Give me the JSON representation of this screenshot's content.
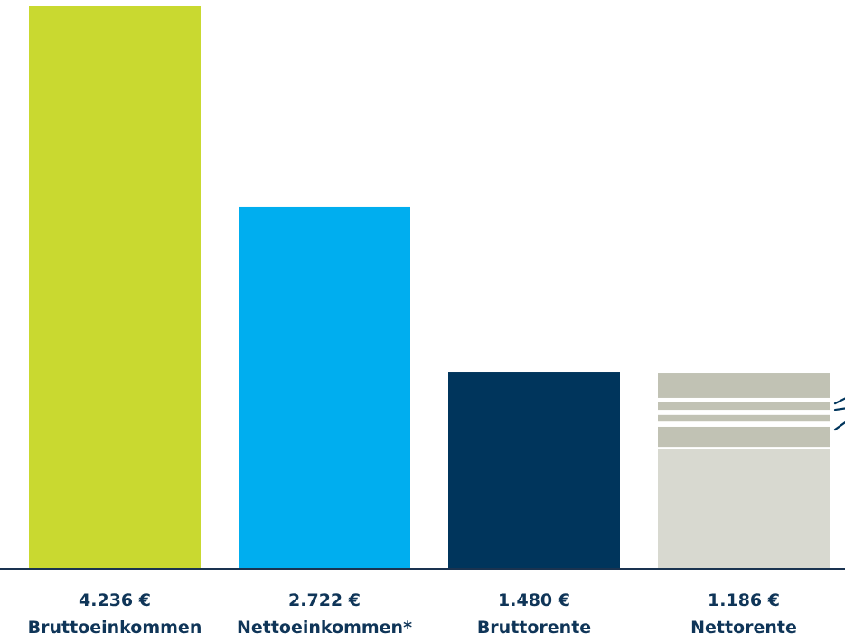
{
  "chart_data": {
    "type": "bar",
    "categories": [
      "Bruttoeinkommen",
      "Nettoeinkommen*",
      "Bruttorente",
      "Nettorente"
    ],
    "values": [
      4236,
      2722,
      1480,
      1186
    ],
    "value_labels": [
      "4.236 €",
      "2.722 €",
      "1.480 €",
      "1.186 €"
    ],
    "title": "",
    "xlabel": "",
    "ylabel": "",
    "ylim": [
      0,
      4236
    ],
    "grid": false,
    "legend": "none",
    "colors": [
      "#c9d930",
      "#00aeef",
      "#00355c",
      "#d8d9d0"
    ],
    "deduction_band_color": "#c1c2b4",
    "baseline_color": "#1a3350",
    "label_color": "#0f3558",
    "bracket_color": "#00355c"
  }
}
